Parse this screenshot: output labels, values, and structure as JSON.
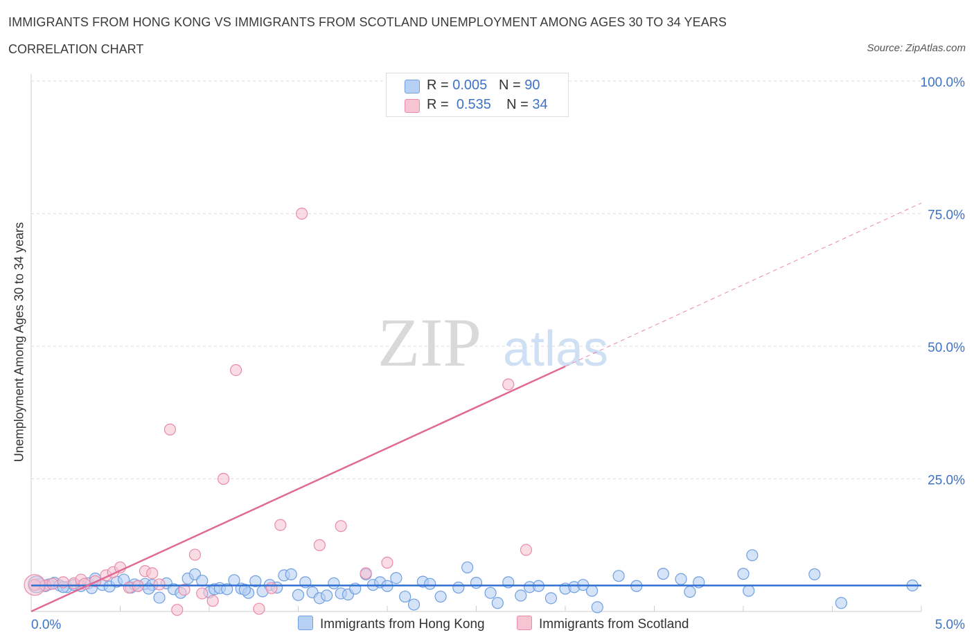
{
  "header": {
    "title": "IMMIGRANTS FROM HONG KONG VS IMMIGRANTS FROM SCOTLAND UNEMPLOYMENT AMONG AGES 30 TO 34 YEARS",
    "subtitle": "CORRELATION CHART",
    "source": "Source: ZipAtlas.com"
  },
  "watermark": {
    "zip": "ZIP",
    "atlas": "atlas"
  },
  "legend": {
    "rows": [
      {
        "r_label": "R =",
        "r_value": "0.005",
        "n_label": "N =",
        "n_value": "90"
      },
      {
        "r_label": "R =",
        "r_value": "0.535",
        "n_label": "N =",
        "n_value": "34"
      }
    ]
  },
  "colors": {
    "blue_fill": "#b7d1f4",
    "blue_stroke": "#6f9fe0",
    "blue_line": "#2f6fd1",
    "pink_fill": "#f7c4d4",
    "pink_stroke": "#e98aa9",
    "pink_line": "#e06a95",
    "axis_text": "#3d72c6",
    "grid": "#dddddd"
  },
  "chart_data": {
    "type": "scatter",
    "title": "IMMIGRANTS FROM HONG KONG VS IMMIGRANTS FROM SCOTLAND UNEMPLOYMENT AMONG AGES 30 TO 34 YEARS",
    "xlabel": "",
    "ylabel": "Unemployment Among Ages 30 to 34 years",
    "xlim": [
      0,
      5
    ],
    "ylim": [
      0,
      100
    ],
    "x_tick_labels": [
      "0.0%",
      "5.0%"
    ],
    "y_tick_labels": [
      "25.0%",
      "50.0%",
      "75.0%",
      "100.0%"
    ],
    "y_ticks": [
      25,
      50,
      75,
      100
    ],
    "grid": true,
    "legend_position": "bottom",
    "series": [
      {
        "name": "Immigrants from Hong Kong",
        "color": "#b7d1f4",
        "points": [
          [
            0.02,
            5.0
          ],
          [
            0.05,
            5.2
          ],
          [
            0.08,
            4.8
          ],
          [
            0.1,
            5.1
          ],
          [
            0.13,
            5.4
          ],
          [
            0.16,
            4.9
          ],
          [
            0.2,
            4.6
          ],
          [
            0.24,
            5.0
          ],
          [
            0.28,
            4.8
          ],
          [
            0.32,
            5.3
          ],
          [
            0.36,
            6.2
          ],
          [
            0.4,
            5.0
          ],
          [
            0.44,
            4.7
          ],
          [
            0.48,
            5.6
          ],
          [
            0.52,
            6.0
          ],
          [
            0.56,
            4.5
          ],
          [
            0.6,
            4.8
          ],
          [
            0.64,
            5.2
          ],
          [
            0.68,
            5.0
          ],
          [
            0.72,
            2.6
          ],
          [
            0.76,
            5.3
          ],
          [
            0.8,
            4.2
          ],
          [
            0.84,
            3.5
          ],
          [
            0.88,
            6.2
          ],
          [
            0.92,
            7.0
          ],
          [
            0.96,
            5.8
          ],
          [
            1.0,
            3.6
          ],
          [
            1.03,
            4.2
          ],
          [
            1.06,
            4.4
          ],
          [
            1.1,
            4.2
          ],
          [
            1.14,
            5.9
          ],
          [
            1.18,
            4.3
          ],
          [
            1.22,
            3.5
          ],
          [
            1.26,
            5.7
          ],
          [
            1.3,
            3.8
          ],
          [
            1.34,
            5.0
          ],
          [
            1.38,
            4.5
          ],
          [
            1.42,
            6.8
          ],
          [
            1.46,
            7.0
          ],
          [
            1.5,
            3.1
          ],
          [
            1.54,
            5.5
          ],
          [
            1.58,
            3.6
          ],
          [
            1.62,
            2.5
          ],
          [
            1.66,
            3.0
          ],
          [
            1.7,
            5.3
          ],
          [
            1.74,
            3.4
          ],
          [
            1.78,
            3.2
          ],
          [
            1.82,
            4.3
          ],
          [
            1.88,
            7.0
          ],
          [
            1.92,
            5.0
          ],
          [
            1.96,
            5.5
          ],
          [
            2.0,
            4.8
          ],
          [
            2.05,
            6.3
          ],
          [
            2.1,
            2.8
          ],
          [
            2.15,
            1.3
          ],
          [
            2.2,
            5.6
          ],
          [
            2.3,
            2.8
          ],
          [
            2.4,
            4.5
          ],
          [
            2.45,
            8.3
          ],
          [
            2.5,
            5.4
          ],
          [
            2.58,
            3.5
          ],
          [
            2.62,
            1.6
          ],
          [
            2.68,
            5.5
          ],
          [
            2.75,
            3.0
          ],
          [
            2.8,
            4.6
          ],
          [
            2.85,
            4.8
          ],
          [
            2.92,
            2.5
          ],
          [
            3.0,
            4.3
          ],
          [
            3.05,
            4.6
          ],
          [
            3.1,
            5.0
          ],
          [
            3.15,
            3.9
          ],
          [
            3.18,
            0.8
          ],
          [
            3.3,
            6.7
          ],
          [
            3.4,
            4.8
          ],
          [
            3.55,
            7.1
          ],
          [
            3.65,
            6.1
          ],
          [
            3.7,
            3.7
          ],
          [
            3.75,
            5.5
          ],
          [
            4.0,
            7.1
          ],
          [
            4.03,
            3.9
          ],
          [
            4.05,
            10.6
          ],
          [
            4.4,
            7.0
          ],
          [
            4.55,
            1.6
          ],
          [
            4.95,
            4.9
          ],
          [
            0.18,
            4.6
          ],
          [
            0.34,
            4.4
          ],
          [
            0.58,
            5.1
          ],
          [
            1.2,
            4.1
          ],
          [
            2.24,
            5.2
          ],
          [
            0.66,
            4.3
          ]
        ]
      },
      {
        "name": "Immigrants from Scotland",
        "color": "#f7c4d4",
        "points": [
          [
            0.02,
            5.0
          ],
          [
            0.08,
            4.9
          ],
          [
            0.12,
            5.2
          ],
          [
            0.18,
            5.5
          ],
          [
            0.24,
            5.3
          ],
          [
            0.28,
            6.0
          ],
          [
            0.3,
            5.2
          ],
          [
            0.36,
            5.7
          ],
          [
            0.42,
            6.8
          ],
          [
            0.46,
            7.4
          ],
          [
            0.5,
            8.3
          ],
          [
            0.55,
            4.5
          ],
          [
            0.6,
            4.8
          ],
          [
            0.64,
            7.6
          ],
          [
            0.68,
            7.2
          ],
          [
            0.72,
            5.1
          ],
          [
            0.78,
            34.3
          ],
          [
            0.82,
            0.3
          ],
          [
            0.86,
            4.1
          ],
          [
            0.92,
            10.7
          ],
          [
            0.96,
            3.4
          ],
          [
            1.02,
            2.0
          ],
          [
            1.08,
            25.0
          ],
          [
            1.15,
            45.5
          ],
          [
            1.28,
            0.5
          ],
          [
            1.35,
            4.4
          ],
          [
            1.4,
            16.3
          ],
          [
            1.52,
            75.0
          ],
          [
            1.62,
            12.5
          ],
          [
            1.74,
            16.1
          ],
          [
            1.88,
            7.2
          ],
          [
            2.0,
            9.2
          ],
          [
            2.68,
            42.8
          ],
          [
            2.78,
            11.6
          ]
        ]
      }
    ],
    "trend_lines": [
      {
        "name": "Immigrants from Hong Kong",
        "x0": 0.0,
        "y0": 4.9,
        "x1": 5.0,
        "y1": 4.9,
        "dashed_to": 5.0
      },
      {
        "name": "Immigrants from Scotland",
        "x0": 0.0,
        "y0": 0.0,
        "x1": 3.0,
        "y1": 46.2,
        "dashed_to": 5.0
      }
    ]
  },
  "bottom_legend": {
    "items": [
      {
        "label": "Immigrants from Hong Kong"
      },
      {
        "label": "Immigrants from Scotland"
      }
    ]
  }
}
